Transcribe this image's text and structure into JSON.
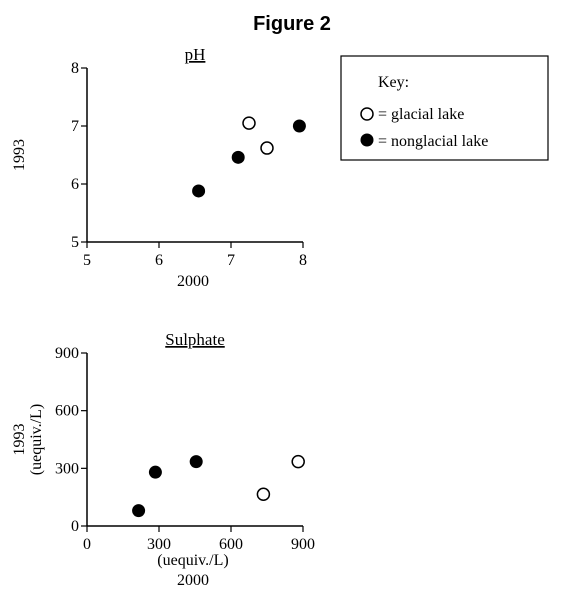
{
  "figure_title": "Figure 2",
  "key": {
    "title": "Key:",
    "items": [
      {
        "marker": "open-circle",
        "label": "= glacial lake"
      },
      {
        "marker": "filled-circle",
        "label": "= nonglacial lake"
      }
    ]
  },
  "chart_data": [
    {
      "type": "scatter",
      "title": "pH",
      "xlabel": [
        "2000"
      ],
      "ylabel": [
        "1993"
      ],
      "xlim": [
        5,
        8
      ],
      "ylim": [
        5,
        8
      ],
      "xticks": [
        "5",
        "6",
        "7",
        "8"
      ],
      "yticks": [
        "5",
        "6",
        "7",
        "8"
      ],
      "series": [
        {
          "name": "glacial lake",
          "marker": "open",
          "points": [
            [
              7.25,
              7.05
            ],
            [
              7.5,
              6.62
            ]
          ]
        },
        {
          "name": "nonglacial lake",
          "marker": "filled",
          "points": [
            [
              6.55,
              5.88
            ],
            [
              7.1,
              6.46
            ],
            [
              7.95,
              7.0
            ]
          ]
        }
      ]
    },
    {
      "type": "scatter",
      "title": "Sulphate",
      "xlabel": [
        "(uequiv./L)",
        "2000"
      ],
      "ylabel": [
        "1993",
        "(uequiv./L)"
      ],
      "xlim": [
        0,
        900
      ],
      "ylim": [
        0,
        900
      ],
      "xticks": [
        "0",
        "300",
        "600",
        "900"
      ],
      "yticks": [
        "0",
        "300",
        "600",
        "900"
      ],
      "series": [
        {
          "name": "glacial lake",
          "marker": "open",
          "points": [
            [
              735,
              165
            ],
            [
              880,
              335
            ]
          ]
        },
        {
          "name": "nonglacial lake",
          "marker": "filled",
          "points": [
            [
              215,
              80
            ],
            [
              285,
              280
            ],
            [
              455,
              335
            ]
          ]
        }
      ]
    }
  ]
}
